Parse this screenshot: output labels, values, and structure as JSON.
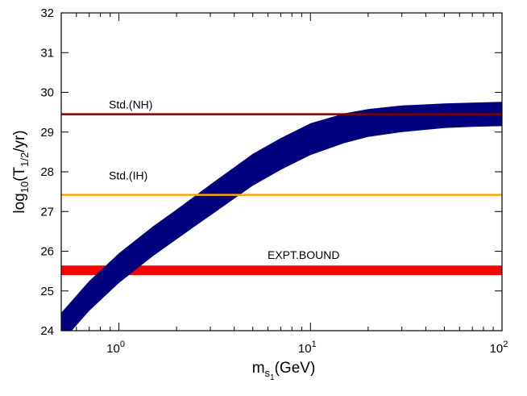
{
  "chart_data": {
    "type": "area",
    "xscale": "log",
    "xlim": [
      0.5,
      100
    ],
    "ylim": [
      24,
      32
    ],
    "grid": false,
    "x_ticks": [
      {
        "value": 1,
        "base": "10",
        "exp": "0"
      },
      {
        "value": 10,
        "base": "10",
        "exp": "1"
      },
      {
        "value": 100,
        "base": "10",
        "exp": "2"
      }
    ],
    "x_minor_ticks": [
      0.5,
      0.6,
      0.7,
      0.8,
      0.9,
      2,
      3,
      4,
      5,
      6,
      7,
      8,
      9,
      20,
      30,
      40,
      50,
      60,
      70,
      80,
      90
    ],
    "y_ticks": [
      24,
      25,
      26,
      27,
      28,
      29,
      30,
      31,
      32
    ],
    "xlabel": {
      "main": "m",
      "sub": "s",
      "subsub": "1",
      "rest": "(GeV)"
    },
    "ylabel": {
      "main": "log",
      "sub": "10",
      "mid": "(T",
      "sub2": "1/2",
      "rest": "/yr)"
    },
    "band": {
      "color": "#00007f",
      "x": [
        0.5,
        0.7,
        1.0,
        1.5,
        2.0,
        3.0,
        5.0,
        7.0,
        10,
        15,
        20,
        30,
        50,
        70,
        100
      ],
      "upper": [
        24.45,
        25.25,
        25.95,
        26.62,
        27.05,
        27.68,
        28.45,
        28.85,
        29.22,
        29.47,
        29.58,
        29.67,
        29.72,
        29.74,
        29.76
      ],
      "lower": [
        23.7,
        24.5,
        25.2,
        25.87,
        26.3,
        26.9,
        27.65,
        28.05,
        28.42,
        28.72,
        28.88,
        29.0,
        29.1,
        29.13,
        29.15
      ]
    },
    "lines": [
      {
        "label": "Std.(NH)",
        "y": 29.45,
        "color": "#800000",
        "width": 2.5
      },
      {
        "label": "Std.(IH)",
        "y": 27.42,
        "color": "#ffa500",
        "width": 2.5
      }
    ],
    "bound": {
      "label": "EXPT.BOUND",
      "y": [
        25.4,
        25.64
      ],
      "color": "#ff0000"
    }
  }
}
